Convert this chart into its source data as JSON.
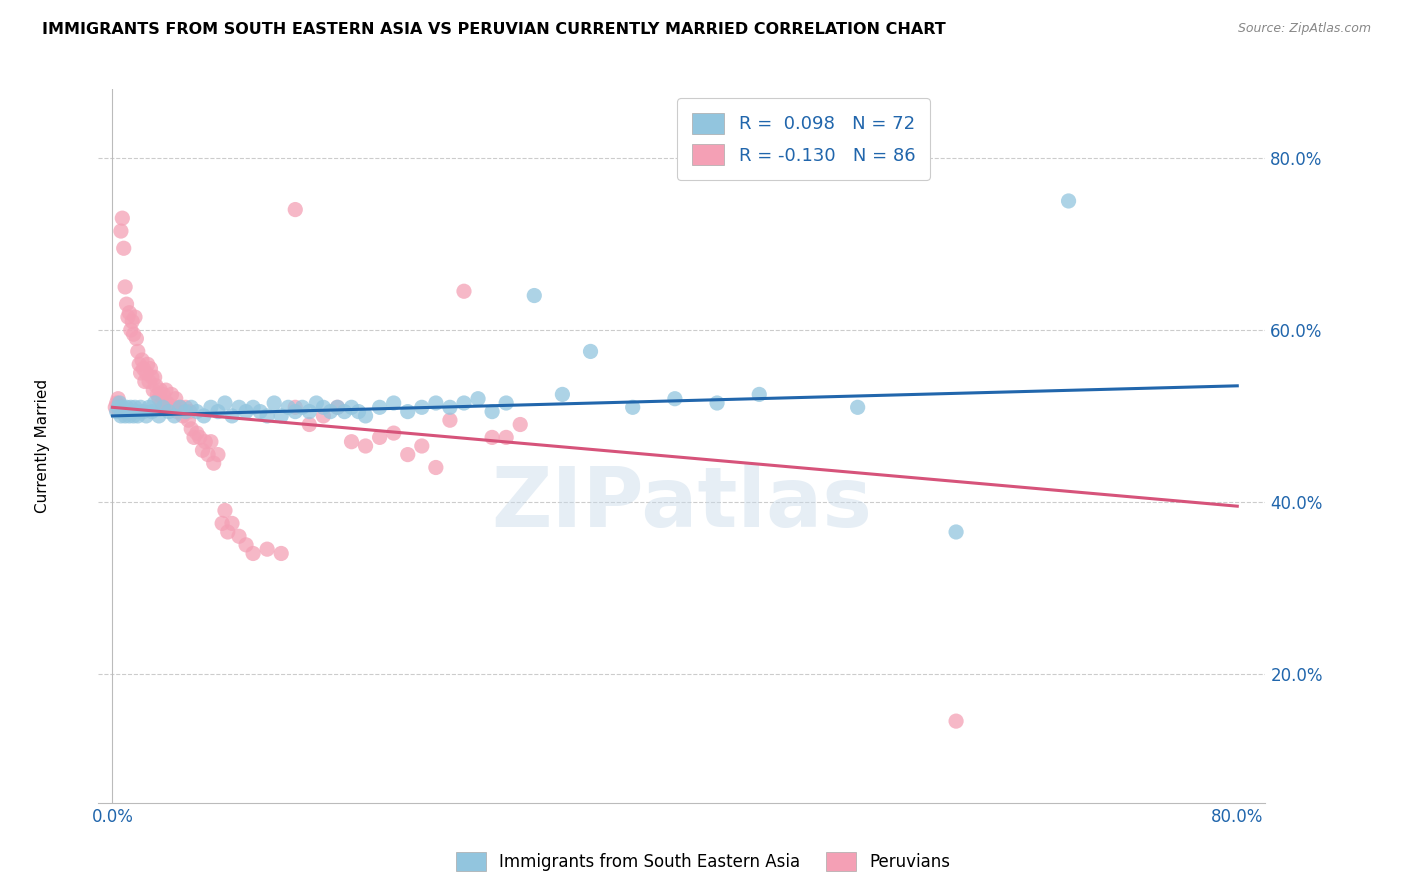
{
  "title": "IMMIGRANTS FROM SOUTH EASTERN ASIA VS PERUVIAN CURRENTLY MARRIED CORRELATION CHART",
  "source": "Source: ZipAtlas.com",
  "ylabel": "Currently Married",
  "ytick_values": [
    0.2,
    0.4,
    0.6,
    0.8
  ],
  "ytick_labels": [
    "20.0%",
    "40.0%",
    "60.0%",
    "80.0%"
  ],
  "xlim": [
    -0.01,
    0.82
  ],
  "ylim": [
    0.05,
    0.88
  ],
  "blue_color": "#92c5de",
  "pink_color": "#f4a0b5",
  "trendline_blue_color": "#2166ac",
  "trendline_pink_color": "#d6537a",
  "watermark": "ZIPatlas",
  "blue_scatter": [
    [
      0.003,
      0.505
    ],
    [
      0.004,
      0.51
    ],
    [
      0.005,
      0.515
    ],
    [
      0.006,
      0.5
    ],
    [
      0.007,
      0.51
    ],
    [
      0.008,
      0.505
    ],
    [
      0.009,
      0.5
    ],
    [
      0.01,
      0.51
    ],
    [
      0.011,
      0.505
    ],
    [
      0.012,
      0.5
    ],
    [
      0.013,
      0.51
    ],
    [
      0.014,
      0.505
    ],
    [
      0.015,
      0.5
    ],
    [
      0.016,
      0.51
    ],
    [
      0.017,
      0.505
    ],
    [
      0.018,
      0.5
    ],
    [
      0.02,
      0.51
    ],
    [
      0.022,
      0.505
    ],
    [
      0.024,
      0.5
    ],
    [
      0.026,
      0.51
    ],
    [
      0.028,
      0.505
    ],
    [
      0.03,
      0.515
    ],
    [
      0.033,
      0.5
    ],
    [
      0.036,
      0.51
    ],
    [
      0.04,
      0.505
    ],
    [
      0.044,
      0.5
    ],
    [
      0.048,
      0.51
    ],
    [
      0.052,
      0.505
    ],
    [
      0.056,
      0.51
    ],
    [
      0.06,
      0.505
    ],
    [
      0.065,
      0.5
    ],
    [
      0.07,
      0.51
    ],
    [
      0.075,
      0.505
    ],
    [
      0.08,
      0.515
    ],
    [
      0.085,
      0.5
    ],
    [
      0.09,
      0.51
    ],
    [
      0.095,
      0.505
    ],
    [
      0.1,
      0.51
    ],
    [
      0.105,
      0.505
    ],
    [
      0.11,
      0.5
    ],
    [
      0.115,
      0.515
    ],
    [
      0.12,
      0.5
    ],
    [
      0.125,
      0.51
    ],
    [
      0.13,
      0.505
    ],
    [
      0.135,
      0.51
    ],
    [
      0.14,
      0.505
    ],
    [
      0.145,
      0.515
    ],
    [
      0.15,
      0.51
    ],
    [
      0.155,
      0.505
    ],
    [
      0.16,
      0.51
    ],
    [
      0.165,
      0.505
    ],
    [
      0.17,
      0.51
    ],
    [
      0.175,
      0.505
    ],
    [
      0.18,
      0.5
    ],
    [
      0.19,
      0.51
    ],
    [
      0.2,
      0.515
    ],
    [
      0.21,
      0.505
    ],
    [
      0.22,
      0.51
    ],
    [
      0.23,
      0.515
    ],
    [
      0.24,
      0.51
    ],
    [
      0.25,
      0.515
    ],
    [
      0.26,
      0.52
    ],
    [
      0.27,
      0.505
    ],
    [
      0.28,
      0.515
    ],
    [
      0.3,
      0.64
    ],
    [
      0.32,
      0.525
    ],
    [
      0.34,
      0.575
    ],
    [
      0.37,
      0.51
    ],
    [
      0.4,
      0.52
    ],
    [
      0.43,
      0.515
    ],
    [
      0.46,
      0.525
    ],
    [
      0.53,
      0.51
    ],
    [
      0.6,
      0.365
    ],
    [
      0.68,
      0.75
    ]
  ],
  "pink_scatter": [
    [
      0.002,
      0.51
    ],
    [
      0.003,
      0.515
    ],
    [
      0.004,
      0.52
    ],
    [
      0.005,
      0.51
    ],
    [
      0.006,
      0.715
    ],
    [
      0.007,
      0.73
    ],
    [
      0.008,
      0.695
    ],
    [
      0.009,
      0.65
    ],
    [
      0.01,
      0.63
    ],
    [
      0.011,
      0.615
    ],
    [
      0.012,
      0.62
    ],
    [
      0.013,
      0.6
    ],
    [
      0.014,
      0.61
    ],
    [
      0.015,
      0.595
    ],
    [
      0.016,
      0.615
    ],
    [
      0.017,
      0.59
    ],
    [
      0.018,
      0.575
    ],
    [
      0.019,
      0.56
    ],
    [
      0.02,
      0.55
    ],
    [
      0.021,
      0.565
    ],
    [
      0.022,
      0.555
    ],
    [
      0.023,
      0.54
    ],
    [
      0.024,
      0.55
    ],
    [
      0.025,
      0.56
    ],
    [
      0.026,
      0.54
    ],
    [
      0.027,
      0.555
    ],
    [
      0.028,
      0.545
    ],
    [
      0.029,
      0.53
    ],
    [
      0.03,
      0.545
    ],
    [
      0.031,
      0.535
    ],
    [
      0.032,
      0.525
    ],
    [
      0.033,
      0.52
    ],
    [
      0.034,
      0.53
    ],
    [
      0.035,
      0.515
    ],
    [
      0.036,
      0.525
    ],
    [
      0.037,
      0.51
    ],
    [
      0.038,
      0.53
    ],
    [
      0.039,
      0.515
    ],
    [
      0.04,
      0.51
    ],
    [
      0.042,
      0.525
    ],
    [
      0.044,
      0.51
    ],
    [
      0.045,
      0.52
    ],
    [
      0.046,
      0.505
    ],
    [
      0.048,
      0.51
    ],
    [
      0.05,
      0.5
    ],
    [
      0.052,
      0.51
    ],
    [
      0.054,
      0.495
    ],
    [
      0.055,
      0.505
    ],
    [
      0.056,
      0.485
    ],
    [
      0.058,
      0.475
    ],
    [
      0.06,
      0.48
    ],
    [
      0.062,
      0.475
    ],
    [
      0.064,
      0.46
    ],
    [
      0.066,
      0.47
    ],
    [
      0.068,
      0.455
    ],
    [
      0.07,
      0.47
    ],
    [
      0.072,
      0.445
    ],
    [
      0.075,
      0.455
    ],
    [
      0.078,
      0.375
    ],
    [
      0.08,
      0.39
    ],
    [
      0.082,
      0.365
    ],
    [
      0.085,
      0.375
    ],
    [
      0.09,
      0.36
    ],
    [
      0.095,
      0.35
    ],
    [
      0.1,
      0.34
    ],
    [
      0.11,
      0.345
    ],
    [
      0.12,
      0.34
    ],
    [
      0.13,
      0.51
    ],
    [
      0.14,
      0.49
    ],
    [
      0.15,
      0.5
    ],
    [
      0.16,
      0.51
    ],
    [
      0.17,
      0.47
    ],
    [
      0.18,
      0.465
    ],
    [
      0.19,
      0.475
    ],
    [
      0.2,
      0.48
    ],
    [
      0.21,
      0.455
    ],
    [
      0.22,
      0.465
    ],
    [
      0.23,
      0.44
    ],
    [
      0.24,
      0.495
    ],
    [
      0.25,
      0.645
    ],
    [
      0.27,
      0.475
    ],
    [
      0.28,
      0.475
    ],
    [
      0.29,
      0.49
    ],
    [
      0.13,
      0.74
    ],
    [
      0.6,
      0.145
    ]
  ],
  "blue_trend_x": [
    0.0,
    0.8
  ],
  "blue_trend_y": [
    0.5,
    0.535
  ],
  "pink_trend_x": [
    0.0,
    0.8
  ],
  "pink_trend_y": [
    0.51,
    0.395
  ]
}
